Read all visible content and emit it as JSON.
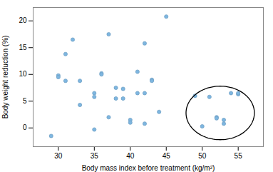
{
  "chart_data": {
    "type": "scatter",
    "x": [
      29,
      30,
      30,
      31,
      31,
      32,
      33,
      33,
      35,
      35,
      35,
      36,
      36,
      37,
      37,
      38,
      38,
      39,
      39,
      40,
      40,
      41,
      41,
      42,
      42,
      42,
      43,
      43,
      44,
      45,
      49,
      50,
      51,
      52,
      52,
      53,
      53,
      54,
      55,
      55
    ],
    "y": [
      -1.5,
      9.8,
      9.5,
      8.8,
      13.8,
      16.5,
      8.8,
      4.3,
      6.5,
      5.8,
      -0.3,
      10.2,
      10.0,
      17.5,
      2.0,
      7.5,
      5.5,
      7.3,
      5.5,
      1.5,
      1.0,
      10.5,
      6.5,
      15.8,
      6.5,
      0.8,
      9.0,
      8.8,
      3.0,
      20.8,
      6.0,
      0.3,
      5.8,
      2.0,
      1.8,
      1.5,
      0.8,
      6.5,
      6.3,
      6.5
    ],
    "color": "#7EB6E0",
    "xlabel": "Body mass index before treatment (kg/m²)",
    "ylabel": "Body weight reduction (%)",
    "xlim": [
      26.5,
      58.5
    ],
    "ylim": [
      -3.5,
      22.5
    ],
    "xticks": [
      30,
      35,
      40,
      45,
      50,
      55
    ],
    "yticks": [
      0,
      5,
      10,
      15,
      20
    ],
    "ellipse": {
      "center_x": 52.5,
      "center_y": 2.8,
      "width": 9.5,
      "height": 10.0,
      "color": "black"
    }
  }
}
